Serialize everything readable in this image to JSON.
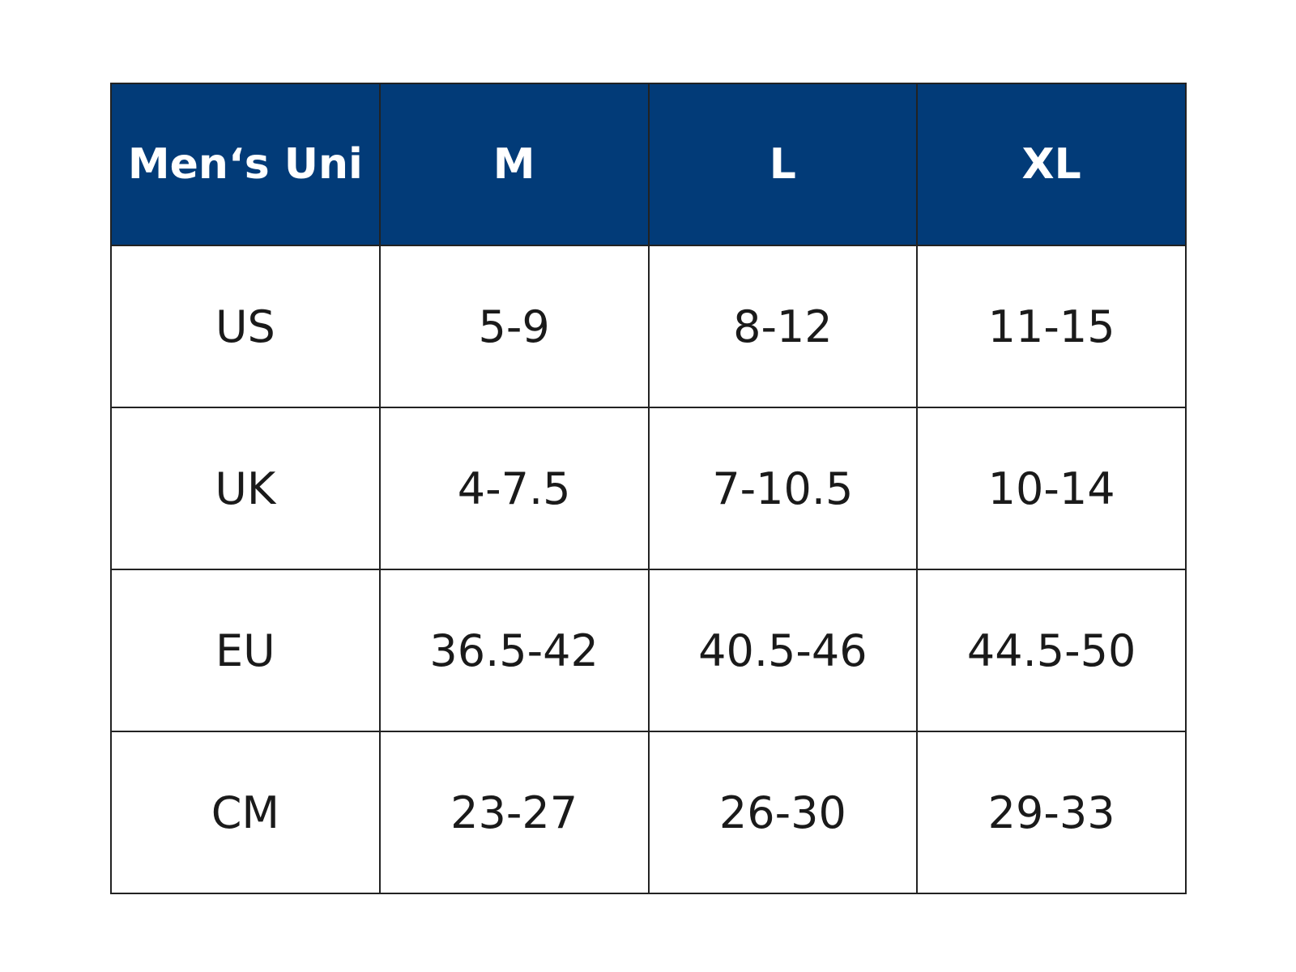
{
  "table": {
    "header": [
      "Men‘s Uni",
      "M",
      "L",
      "XL"
    ],
    "rows": [
      [
        "US",
        "5-9",
        "8-12",
        "11-15"
      ],
      [
        "UK",
        "4-7.5",
        "7-10.5",
        "10-14"
      ],
      [
        "EU",
        "36.5-42",
        "40.5-46",
        "44.5-50"
      ],
      [
        "CM",
        "23-27",
        "26-30",
        "29-33"
      ]
    ]
  }
}
